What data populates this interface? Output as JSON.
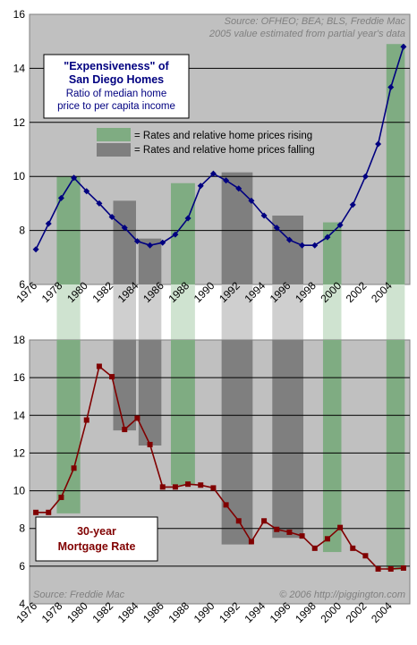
{
  "source_top_line1": "Source: OFHEO; BEA; BLS, Freddie Mac",
  "source_top_line2": "2005 value estimated from partial year's data",
  "source_bottom": "Source: Freddie Mac",
  "copyright": "© 2006 http://piggington.com",
  "colors": {
    "plot_bg": "#c0c0c0",
    "rising_band": "#7fac82",
    "falling_band": "#7f7f7f",
    "home_series": "#000080",
    "mortgage_series": "#800000",
    "title_border": "#000000"
  },
  "legend": {
    "rising": "= Rates and relative home prices rising",
    "falling": "= Rates and relative home prices falling"
  },
  "chart_data": [
    {
      "type": "line",
      "title_line1": "\"Expensiveness\" of",
      "title_line2": "San Diego Homes",
      "subtitle_line1": "Ratio of median home",
      "subtitle_line2": "price to per capita income",
      "xlabel": "",
      "ylabel": "",
      "ylim": [
        6,
        16
      ],
      "yticks": [
        6,
        8,
        10,
        12,
        14,
        16
      ],
      "xticks": [
        1976,
        1978,
        1980,
        1982,
        1984,
        1986,
        1988,
        1990,
        1992,
        1994,
        1996,
        1998,
        2000,
        2002,
        2004
      ],
      "grid": true,
      "series": [
        {
          "x": [
            1976,
            1977,
            1978,
            1979,
            1980,
            1981,
            1982,
            1983,
            1984,
            1985,
            1986,
            1987,
            1988,
            1989,
            1990,
            1991,
            1992,
            1993,
            1994,
            1995,
            1996,
            1997,
            1998,
            1999,
            2000,
            2001,
            2002,
            2003,
            2004,
            2005
          ],
          "values": [
            7.3,
            8.25,
            9.2,
            9.95,
            9.45,
            9.0,
            8.5,
            8.1,
            7.6,
            7.45,
            7.55,
            7.85,
            8.45,
            9.65,
            10.1,
            9.85,
            9.55,
            9.1,
            8.55,
            8.1,
            7.65,
            7.45,
            7.45,
            7.75,
            8.2,
            8.95,
            10.0,
            11.2,
            13.3,
            14.8
          ]
        }
      ],
      "bands": [
        {
          "type": "rising",
          "x0": 1977.65,
          "x1": 1979.5,
          "top": 10.0
        },
        {
          "type": "falling",
          "x0": 1982.1,
          "x1": 1983.9,
          "top": 9.1
        },
        {
          "type": "falling",
          "x0": 1984.1,
          "x1": 1985.9,
          "top": 7.7
        },
        {
          "type": "rising",
          "x0": 1986.65,
          "x1": 1988.55,
          "top": 9.75
        },
        {
          "type": "falling",
          "x0": 1990.65,
          "x1": 1993.1,
          "top": 10.15
        },
        {
          "type": "falling",
          "x0": 1994.65,
          "x1": 1997.1,
          "top": 8.55
        },
        {
          "type": "rising",
          "x0": 1998.65,
          "x1": 2000.1,
          "top": 8.3
        },
        {
          "type": "rising",
          "x0": 2003.65,
          "x1": 2005.1,
          "top": 14.9
        }
      ]
    },
    {
      "type": "line",
      "title_line1": "30-year",
      "title_line2": "Mortgage Rate",
      "xlabel": "",
      "ylabel": "",
      "ylim": [
        4,
        18
      ],
      "yticks": [
        4,
        6,
        8,
        10,
        12,
        14,
        16,
        18
      ],
      "xticks": [
        1976,
        1978,
        1980,
        1982,
        1984,
        1986,
        1988,
        1990,
        1992,
        1994,
        1996,
        1998,
        2000,
        2002,
        2004
      ],
      "grid": true,
      "series": [
        {
          "x": [
            1976,
            1977,
            1978,
            1979,
            1980,
            1981,
            1982,
            1983,
            1984,
            1985,
            1986,
            1987,
            1988,
            1989,
            1990,
            1991,
            1992,
            1993,
            1994,
            1995,
            1996,
            1997,
            1998,
            1999,
            2000,
            2001,
            2002,
            2003,
            2004,
            2005
          ],
          "values": [
            8.85,
            8.85,
            9.65,
            11.2,
            13.75,
            16.6,
            16.05,
            13.25,
            13.85,
            12.45,
            10.2,
            10.2,
            10.35,
            10.3,
            10.15,
            9.25,
            8.4,
            7.3,
            8.4,
            7.95,
            7.8,
            7.6,
            6.95,
            7.45,
            8.05,
            6.95,
            6.55,
            5.85,
            5.85,
            5.9
          ]
        }
      ],
      "bands": [
        {
          "type": "rising",
          "x0": 1977.65,
          "x1": 1979.5,
          "bottom": 8.8
        },
        {
          "type": "falling",
          "x0": 1982.1,
          "x1": 1983.9,
          "bottom": 13.2
        },
        {
          "type": "falling",
          "x0": 1984.1,
          "x1": 1985.9,
          "bottom": 12.4
        },
        {
          "type": "rising",
          "x0": 1986.65,
          "x1": 1988.55,
          "bottom": 10.3
        },
        {
          "type": "falling",
          "x0": 1990.65,
          "x1": 1993.1,
          "bottom": 7.15
        },
        {
          "type": "falling",
          "x0": 1994.65,
          "x1": 1997.1,
          "bottom": 7.5
        },
        {
          "type": "rising",
          "x0": 1998.65,
          "x1": 2000.1,
          "bottom": 6.75
        },
        {
          "type": "rising",
          "x0": 2003.65,
          "x1": 2005.1,
          "bottom": 5.8
        }
      ]
    }
  ]
}
